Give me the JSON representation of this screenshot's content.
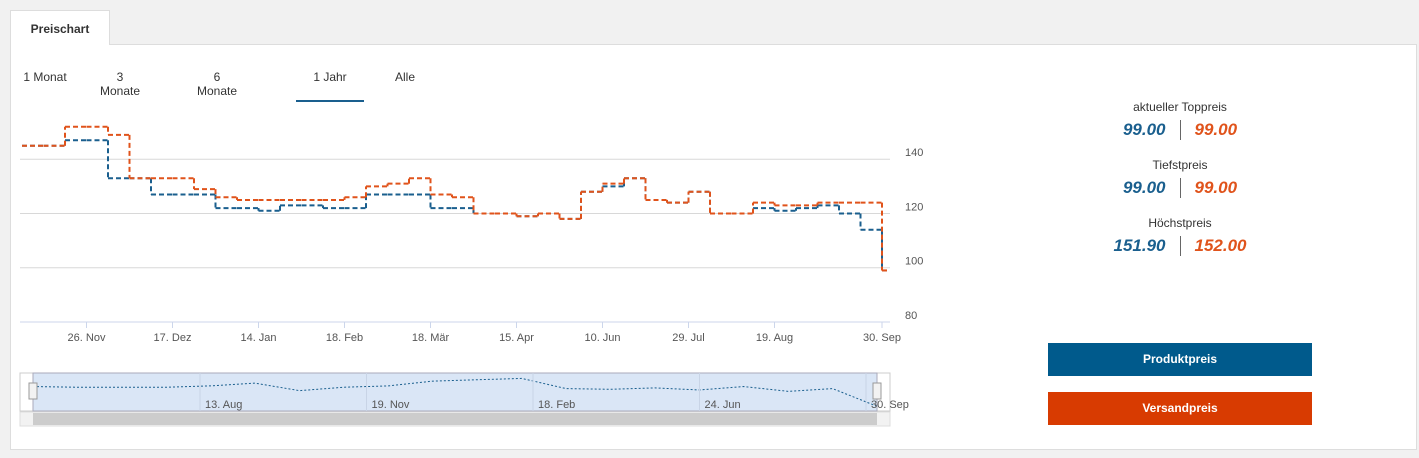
{
  "tab": "Preischart",
  "ranges": {
    "items": [
      "1 Monat",
      "3 Monate",
      "6 Monate",
      "1 Jahr",
      "Alle"
    ],
    "selected": "1 Jahr"
  },
  "chart_data": {
    "type": "line",
    "step": true,
    "dashed": true,
    "categories": [
      null,
      null,
      null,
      "26. Nov",
      null,
      null,
      null,
      "17. Dez",
      null,
      null,
      null,
      "14. Jan",
      null,
      null,
      null,
      "18. Feb",
      null,
      null,
      null,
      "18. Mär",
      null,
      null,
      null,
      "15. Apr",
      null,
      null,
      null,
      "10. Jun",
      null,
      null,
      null,
      "29. Jul",
      null,
      null,
      null,
      "19. Aug",
      null,
      null,
      null,
      null,
      "30. Sep"
    ],
    "series": [
      {
        "name": "Produktpreis",
        "color": "#1a5f8e",
        "values": [
          145,
          145,
          147,
          147,
          133,
          133,
          127,
          127,
          127,
          122,
          122,
          121,
          123,
          123,
          122,
          122,
          127,
          127,
          127,
          122,
          122,
          120,
          120,
          119,
          120,
          118,
          128,
          130,
          133,
          125,
          124,
          128,
          120,
          120,
          122,
          121,
          122,
          123,
          120,
          114,
          99
        ]
      },
      {
        "name": "Versandpreis",
        "color": "#e0531b",
        "values": [
          145,
          145,
          152,
          152,
          149,
          133,
          133,
          133,
          129,
          126,
          125,
          125,
          125,
          125,
          125,
          126,
          130,
          131,
          133,
          127,
          126,
          120,
          120,
          119,
          120,
          118,
          128,
          131,
          133,
          125,
          124,
          128,
          120,
          120,
          124,
          123,
          123,
          124,
          124,
          124,
          99
        ]
      }
    ],
    "ylim": [
      80,
      160
    ],
    "yticks": [
      80,
      100,
      120,
      140
    ],
    "grid": true
  },
  "navigator": {
    "type": "line",
    "labels": [
      "13. Aug",
      "19. Nov",
      "18. Feb",
      "24. Jun",
      "30. Sep"
    ],
    "values": [
      128,
      127,
      127,
      127,
      129,
      133,
      122,
      127,
      129,
      136,
      138,
      140,
      125,
      124,
      126,
      123,
      128,
      121,
      125,
      99
    ],
    "ylim": [
      95,
      145
    ],
    "color": "#1a5f8e"
  },
  "stats": [
    {
      "label": "aktueller Toppreis",
      "values": [
        "99.00",
        "99.00"
      ]
    },
    {
      "label": "Tiefstpreis",
      "values": [
        "99.00",
        "99.00"
      ]
    },
    {
      "label": "Höchstpreis",
      "values": [
        "151.90",
        "152.00"
      ]
    }
  ]
}
